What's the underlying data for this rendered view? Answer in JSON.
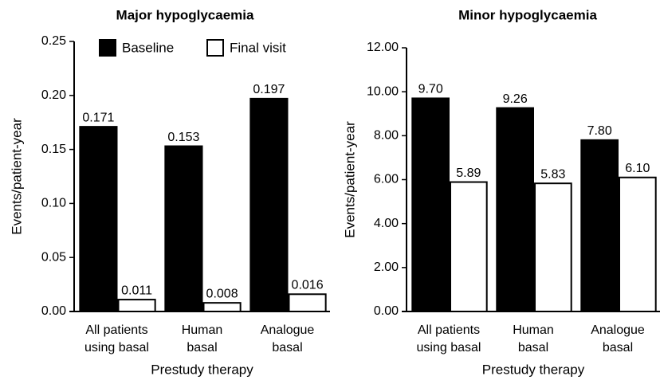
{
  "chart_data": [
    {
      "type": "bar",
      "title": "Major hypoglycaemia",
      "ylabel": "Events/patient-year",
      "xlabel": "Prestudy therapy",
      "categories": [
        [
          "All patients",
          "using basal"
        ],
        [
          "Human",
          "basal"
        ],
        [
          "Analogue",
          "basal"
        ]
      ],
      "series": [
        {
          "name": "Baseline",
          "color": "#000000",
          "values": [
            0.171,
            0.153,
            0.197
          ]
        },
        {
          "name": "Final visit",
          "color": "#ffffff",
          "values": [
            0.011,
            0.008,
            0.016
          ]
        }
      ],
      "ylim": [
        0,
        0.25
      ],
      "yticks": [
        {
          "value": 0,
          "label": "0.00"
        },
        {
          "value": 0.05,
          "label": "0.05"
        },
        {
          "value": 0.1,
          "label": "0.10"
        },
        {
          "value": 0.15,
          "label": "0.15"
        },
        {
          "value": 0.2,
          "label": "0.20"
        },
        {
          "value": 0.25,
          "label": "0.25"
        }
      ],
      "legend": "top"
    },
    {
      "type": "bar",
      "title": "Minor hypoglycaemia",
      "ylabel": "Events/patient-year",
      "xlabel": "Prestudy therapy",
      "categories": [
        [
          "All patients",
          "using basal"
        ],
        [
          "Human",
          "basal"
        ],
        [
          "Analogue",
          "basal"
        ]
      ],
      "series": [
        {
          "color": "#000000",
          "values": [
            9.7,
            9.26,
            7.8
          ],
          "value_labels": [
            "9.70",
            "9.26",
            "7.80"
          ]
        },
        {
          "color": "#ffffff",
          "values": [
            5.89,
            5.83,
            6.1
          ],
          "value_labels": [
            "5.89",
            "5.83",
            "6.10"
          ]
        }
      ],
      "ylim": [
        0,
        12
      ],
      "yticks": [
        {
          "value": 0,
          "label": "0.00"
        },
        {
          "value": 2,
          "label": "2.00"
        },
        {
          "value": 4,
          "label": "4.00"
        },
        {
          "value": 6,
          "label": "6.00"
        },
        {
          "value": 8,
          "label": "8.00"
        },
        {
          "value": 10,
          "label": "10.00"
        },
        {
          "value": 12,
          "label": "12.00"
        }
      ]
    }
  ]
}
